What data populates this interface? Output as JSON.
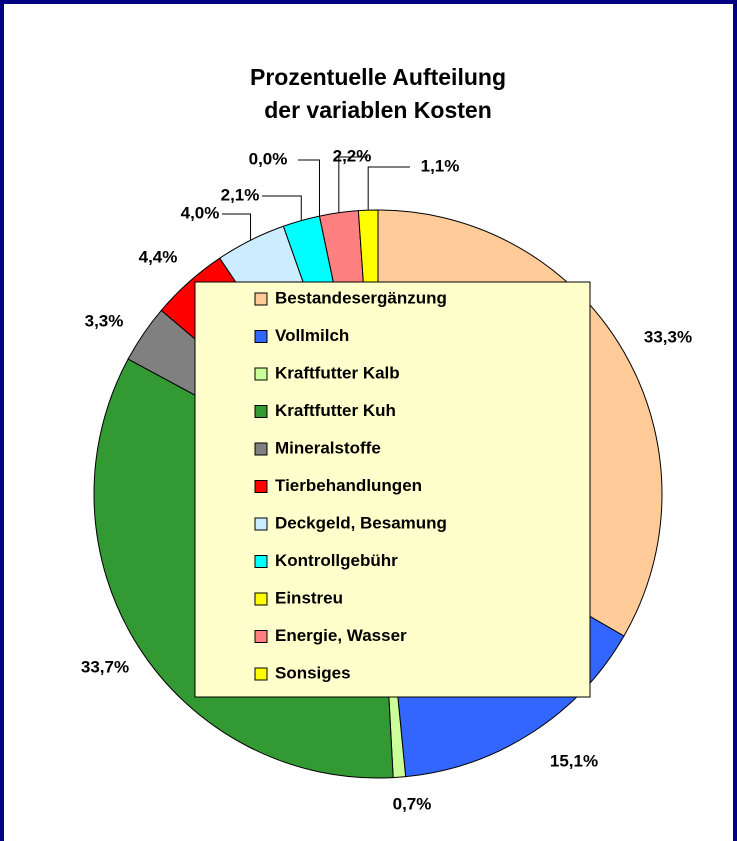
{
  "chart_data": {
    "type": "pie",
    "title": [
      "Prozentuelle Aufteilung",
      "der variablen Kosten"
    ],
    "categories": [
      "Bestandesergänzung",
      "Vollmilch",
      "Kraftfutter Kalb",
      "Kraftfutter Kuh",
      "Mineralstoffe",
      "Tierbehandlungen",
      "Deckgeld, Besamung",
      "Kontrollgebühr",
      "Einstreu",
      "Energie, Wasser",
      "Sonsiges"
    ],
    "values": [
      33.3,
      15.1,
      0.7,
      33.7,
      3.3,
      4.4,
      4.0,
      2.1,
      0.0,
      2.2,
      1.1
    ],
    "value_labels": [
      "33,3%",
      "15,1%",
      "0,7%",
      "33,7%",
      "3,3%",
      "4,4%",
      "4,0%",
      "2,1%",
      "0,0%",
      "2,2%",
      "1,1%"
    ],
    "colors": [
      "#FFCC99",
      "#3366FF",
      "#CCFF99",
      "#339933",
      "#808080",
      "#FF0000",
      "#CCECFF",
      "#00FFFF",
      "#FFFF00",
      "#FF8080",
      "#FFFF00"
    ]
  }
}
